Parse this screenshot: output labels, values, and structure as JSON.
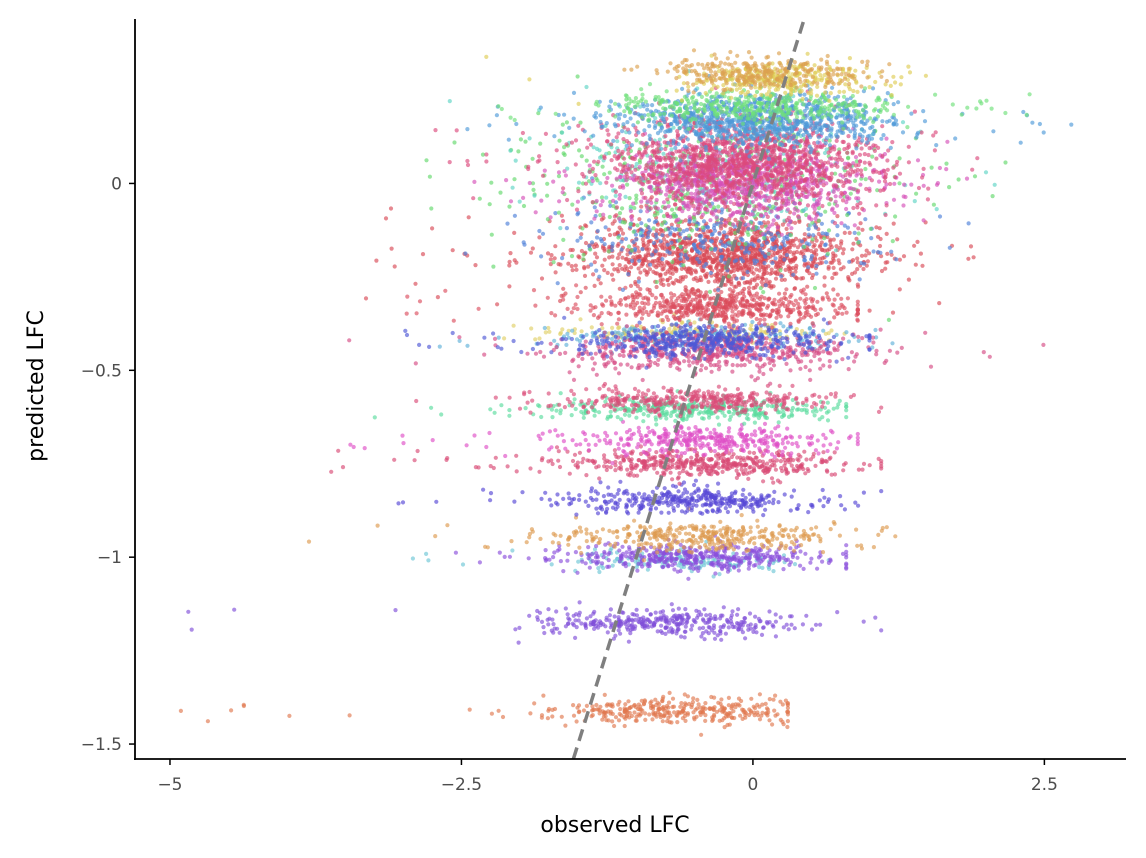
{
  "chart_data": {
    "type": "scatter",
    "xlabel": "observed LFC",
    "ylabel": "predicted LFC",
    "xlim": [
      -5.3,
      3.2
    ],
    "ylim": [
      -1.54,
      0.44
    ],
    "x_ticks": [
      {
        "value": -5,
        "label": "−5"
      },
      {
        "value": -2.5,
        "label": "−2.5"
      },
      {
        "value": 0,
        "label": "0"
      },
      {
        "value": 2.5,
        "label": "2.5"
      }
    ],
    "y_ticks": [
      {
        "value": 0,
        "label": "0"
      },
      {
        "value": -0.5,
        "label": "−0.5"
      },
      {
        "value": -1,
        "label": "−1"
      },
      {
        "value": -1.5,
        "label": "−1.5"
      }
    ],
    "reference_line": {
      "style": "dashed",
      "color": "#7f7f7f",
      "slope": 1,
      "intercept": 0
    },
    "point_opacity": 0.65,
    "grid": false,
    "legend": "none",
    "series": [
      {
        "color": "#e0784f",
        "y_center": -1.41,
        "y_spread": 0.018,
        "x_mean": -0.6,
        "x_sd": 0.55,
        "x_min": -5.0,
        "x_max": 0.3,
        "count": 340
      },
      {
        "color": "#7f4fd9",
        "y_center": -1.175,
        "y_spread": 0.018,
        "x_mean": -0.75,
        "x_sd": 0.6,
        "x_min": -4.9,
        "x_max": 1.1,
        "count": 360
      },
      {
        "color": "#6dc6d6",
        "y_center": -1.01,
        "y_spread": 0.015,
        "x_mean": -0.5,
        "x_sd": 0.5,
        "x_min": -4.0,
        "x_max": 0.7,
        "count": 160
      },
      {
        "color": "#8a4fdc",
        "y_center": -1.0,
        "y_spread": 0.018,
        "x_mean": -0.5,
        "x_sd": 0.55,
        "x_min": -4.1,
        "x_max": 0.8,
        "count": 420
      },
      {
        "color": "#dd9a4e",
        "y_center": -0.945,
        "y_spread": 0.02,
        "x_mean": -0.5,
        "x_sd": 0.6,
        "x_min": -4.0,
        "x_max": 1.5,
        "count": 360
      },
      {
        "color": "#5646d6",
        "y_center": -0.85,
        "y_spread": 0.018,
        "x_mean": -0.55,
        "x_sd": 0.55,
        "x_min": -3.4,
        "x_max": 1.1,
        "count": 360
      },
      {
        "color": "#d94a74",
        "y_center": -0.75,
        "y_spread": 0.018,
        "x_mean": -0.4,
        "x_sd": 0.65,
        "x_min": -4.2,
        "x_max": 1.1,
        "count": 480
      },
      {
        "color": "#de4fc6",
        "y_center": -0.685,
        "y_spread": 0.018,
        "x_mean": -0.45,
        "x_sd": 0.55,
        "x_min": -3.9,
        "x_max": 0.9,
        "count": 360
      },
      {
        "color": "#5bdc9e",
        "y_center": -0.605,
        "y_spread": 0.015,
        "x_mean": -0.5,
        "x_sd": 0.6,
        "x_min": -3.3,
        "x_max": 0.8,
        "count": 380
      },
      {
        "color": "#da4b78",
        "y_center": -0.58,
        "y_spread": 0.016,
        "x_mean": -0.5,
        "x_sd": 0.55,
        "x_min": -3.0,
        "x_max": 1.1,
        "count": 360
      },
      {
        "color": "#e0d066",
        "y_center": -0.4,
        "y_spread": 0.015,
        "x_mean": -0.6,
        "x_sd": 0.6,
        "x_min": -2.8,
        "x_max": 0.9,
        "count": 160
      },
      {
        "color": "#5fb0d9",
        "y_center": -0.41,
        "y_spread": 0.018,
        "x_mean": -0.5,
        "x_sd": 0.7,
        "x_min": -3.0,
        "x_max": 2.4,
        "count": 200
      },
      {
        "color": "#d64c84",
        "y_center": -0.45,
        "y_spread": 0.025,
        "x_mean": -0.4,
        "x_sd": 0.65,
        "x_min": -3.7,
        "x_max": 2.5,
        "count": 540
      },
      {
        "color": "#4f58d6",
        "y_center": -0.42,
        "y_spread": 0.022,
        "x_mean": -0.4,
        "x_sd": 0.6,
        "x_min": -3.0,
        "x_max": 1.0,
        "count": 460
      },
      {
        "color": "#db4f60",
        "y_center": -0.33,
        "y_spread": 0.022,
        "x_mean": -0.3,
        "x_sd": 0.55,
        "x_min": -3.0,
        "x_max": 0.9,
        "count": 560
      },
      {
        "color": "#d84a56",
        "y_center": -0.19,
        "y_spread": 0.05,
        "x_mean": -0.25,
        "x_sd": 0.6,
        "x_min": -3.4,
        "x_max": 1.9,
        "count": 1300
      },
      {
        "color": "#4d7fd9",
        "y_center": -0.15,
        "y_spread": 0.05,
        "x_mean": -0.3,
        "x_sd": 0.7,
        "x_min": -3.2,
        "x_max": 2.0,
        "count": 300
      },
      {
        "color": "#63d96b",
        "y_center": 0.0,
        "y_spread": 0.1,
        "x_mean": -0.3,
        "x_sd": 0.8,
        "x_min": -3.1,
        "x_max": 2.3,
        "count": 520
      },
      {
        "color": "#5ed4c4",
        "y_center": 0.05,
        "y_spread": 0.08,
        "x_mean": -0.3,
        "x_sd": 0.7,
        "x_min": -3.2,
        "x_max": 2.3,
        "count": 260
      },
      {
        "color": "#d650b8",
        "y_center": 0.0,
        "y_spread": 0.05,
        "x_mean": -0.1,
        "x_sd": 0.55,
        "x_min": -2.6,
        "x_max": 2.1,
        "count": 900
      },
      {
        "color": "#db4a7c",
        "y_center": 0.06,
        "y_spread": 0.06,
        "x_mean": -0.1,
        "x_sd": 0.6,
        "x_min": -2.8,
        "x_max": 2.1,
        "count": 1300
      },
      {
        "color": "#4f9ad8",
        "y_center": 0.17,
        "y_spread": 0.035,
        "x_mean": 0.1,
        "x_sd": 0.6,
        "x_min": -2.5,
        "x_max": 2.8,
        "count": 900
      },
      {
        "color": "#6ee07a",
        "y_center": 0.205,
        "y_spread": 0.02,
        "x_mean": 0.0,
        "x_sd": 0.6,
        "x_min": -2.3,
        "x_max": 2.5,
        "count": 380
      },
      {
        "color": "#dfcc55",
        "y_center": 0.28,
        "y_spread": 0.022,
        "x_mean": 0.2,
        "x_sd": 0.4,
        "x_min": -2.4,
        "x_max": 1.7,
        "count": 300
      },
      {
        "color": "#dca250",
        "y_center": 0.295,
        "y_spread": 0.02,
        "x_mean": 0.05,
        "x_sd": 0.45,
        "x_min": -1.3,
        "x_max": 1.6,
        "count": 300
      }
    ]
  }
}
